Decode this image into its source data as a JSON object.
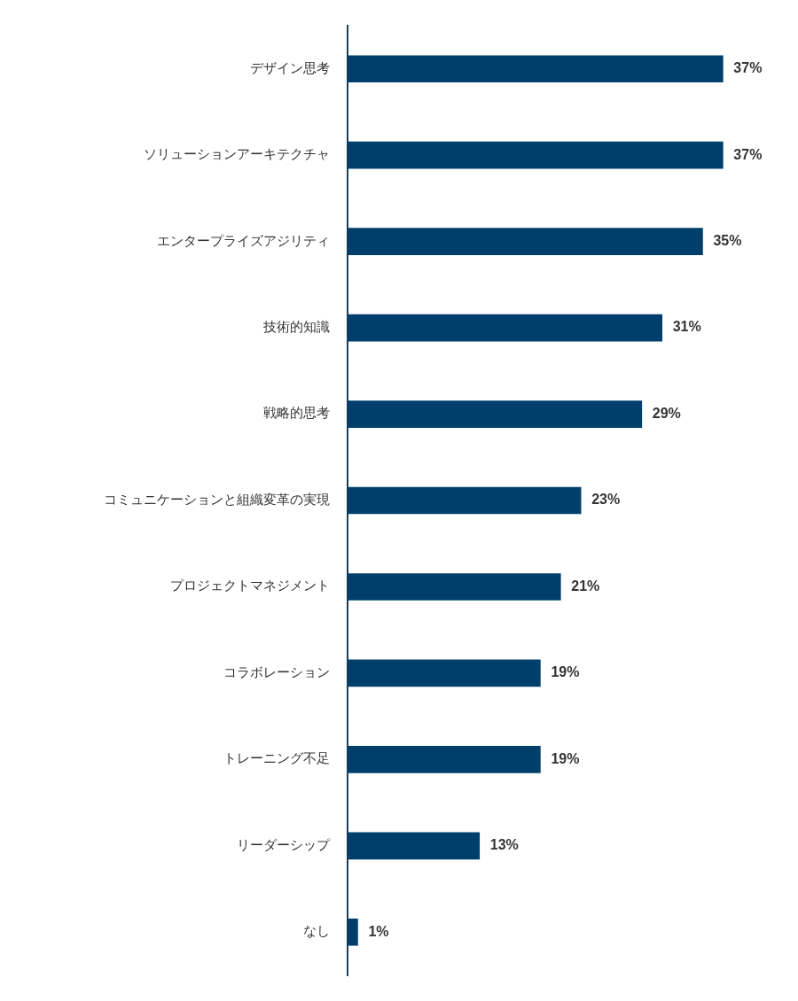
{
  "chart_data": {
    "type": "bar",
    "orientation": "horizontal",
    "categories": [
      "デザイン思考",
      "ソリューションアーキテクチャ",
      "エンタープライズアジリティ",
      "技術的知識",
      "戦略的思考",
      "コミュニケーションと組織変革の実現",
      "プロジェクトマネジメント",
      "コラボレーション",
      "トレーニング不足",
      "リーダーシップ",
      "なし"
    ],
    "values": [
      37,
      37,
      35,
      31,
      29,
      23,
      21,
      19,
      19,
      13,
      1
    ],
    "value_labels": [
      "37%",
      "37%",
      "35%",
      "31%",
      "29%",
      "23%",
      "21%",
      "19%",
      "19%",
      "13%",
      "1%"
    ],
    "color": "#003f6b",
    "grid": false,
    "legend": false,
    "tick_labels": "y"
  }
}
